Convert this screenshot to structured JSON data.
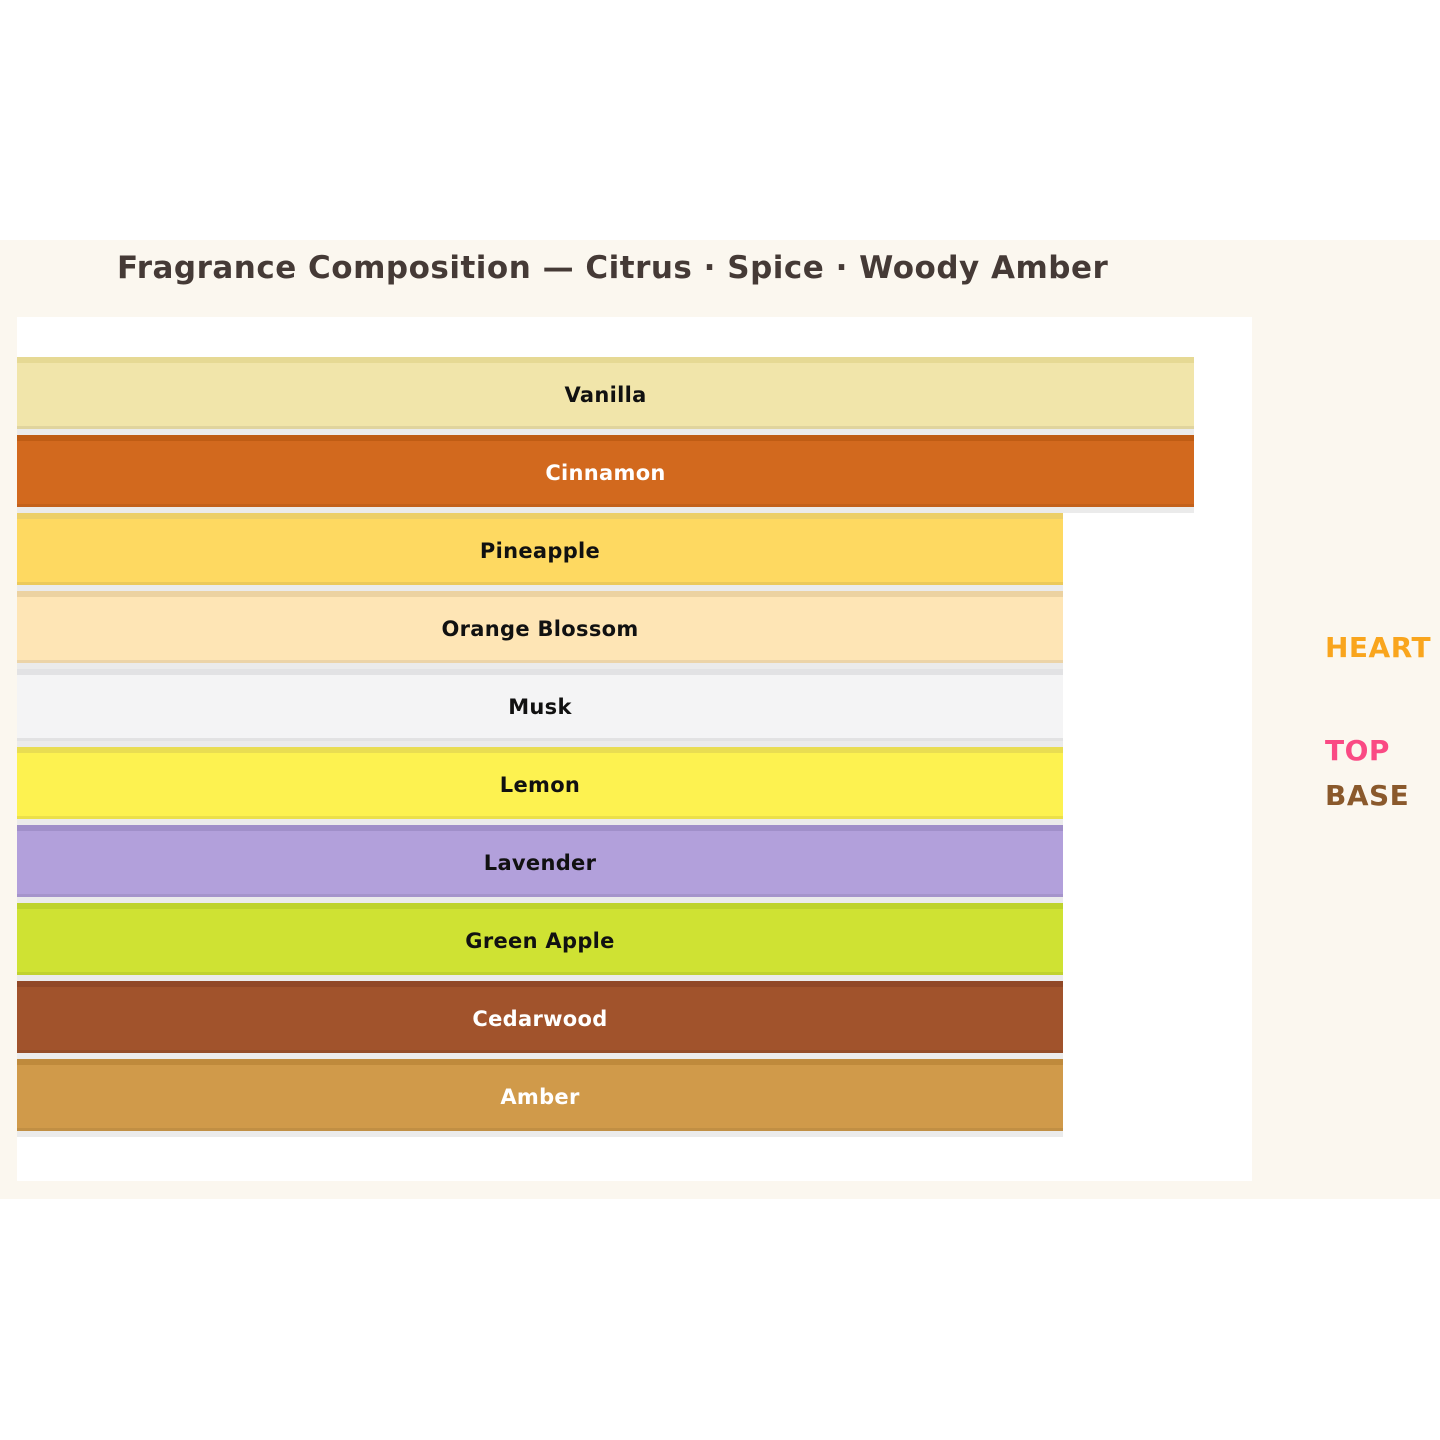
{
  "title": {
    "text": "Fragrance Composition — Citrus · Spice · Woody Amber",
    "color": "#453a36"
  },
  "colors": {
    "page_background": "#ffffff",
    "band_background": "#fbf7ef",
    "panel_background": "#ffffff",
    "bar_shadow": "#ebebeb"
  },
  "chart_data": {
    "type": "bar",
    "orientation": "horizontal",
    "title": "Fragrance Composition — Citrus · Spice · Woody Amber",
    "grid": false,
    "axes_visible": false,
    "legend_position": "right",
    "categories": [
      "Vanilla",
      "Cinnamon",
      "Pineapple",
      "Orange Blossom",
      "Musk",
      "Lemon",
      "Lavender",
      "Green Apple",
      "Cedarwood",
      "Amber"
    ],
    "values_pct_of_plot_width": [
      95.3,
      95.3,
      84.7,
      84.7,
      84.7,
      84.7,
      84.7,
      84.7,
      84.7,
      84.7
    ],
    "bars": [
      {
        "label": "Vanilla",
        "value_pct": 95.3,
        "color": "#f1e5aa",
        "border_color": "#e6d994",
        "label_color": "#111111"
      },
      {
        "label": "Cinnamon",
        "value_pct": 95.3,
        "color": "#d2691e",
        "border_color": "#bf5c14",
        "label_color": "#ffffff"
      },
      {
        "label": "Pineapple",
        "value_pct": 84.7,
        "color": "#fed961",
        "border_color": "#eccf68",
        "label_color": "#111111"
      },
      {
        "label": "Orange Blossom",
        "value_pct": 84.7,
        "color": "#fee5b5",
        "border_color": "#ecd2a1",
        "label_color": "#111111"
      },
      {
        "label": "Musk",
        "value_pct": 84.7,
        "color": "#f4f4f5",
        "border_color": "#e2e2e4",
        "label_color": "#111111"
      },
      {
        "label": "Lemon",
        "value_pct": 84.7,
        "color": "#fdf250",
        "border_color": "#e9dd52",
        "label_color": "#111111"
      },
      {
        "label": "Lavender",
        "value_pct": 84.7,
        "color": "#b2a0db",
        "border_color": "#a08fc9",
        "label_color": "#111111"
      },
      {
        "label": "Green Apple",
        "value_pct": 84.7,
        "color": "#cfe233",
        "border_color": "#bed32c",
        "label_color": "#111111"
      },
      {
        "label": "Cedarwood",
        "value_pct": 84.7,
        "color": "#a1532c",
        "border_color": "#914827",
        "label_color": "#ffffff"
      },
      {
        "label": "Amber",
        "value_pct": 84.7,
        "color": "#d09a4a",
        "border_color": "#bf8a3c",
        "label_color": "#ffffff"
      }
    ],
    "legend": [
      {
        "label": "HEART",
        "color": "#f9a51d"
      },
      {
        "label": "TOP",
        "color": "#fa4a84"
      },
      {
        "label": "BASE",
        "color": "#8a592c"
      }
    ]
  }
}
